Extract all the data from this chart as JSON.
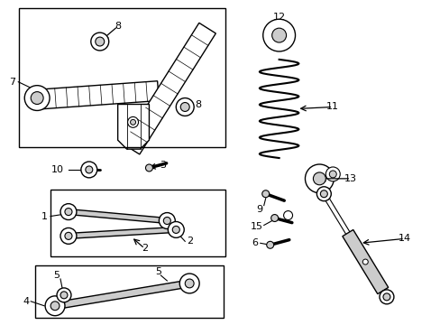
{
  "bg_color": "#ffffff",
  "line_color": "#000000",
  "light_gray": "#cccccc",
  "mid_gray": "#aaaaaa",
  "fig_width": 4.89,
  "fig_height": 3.6,
  "dpi": 100
}
